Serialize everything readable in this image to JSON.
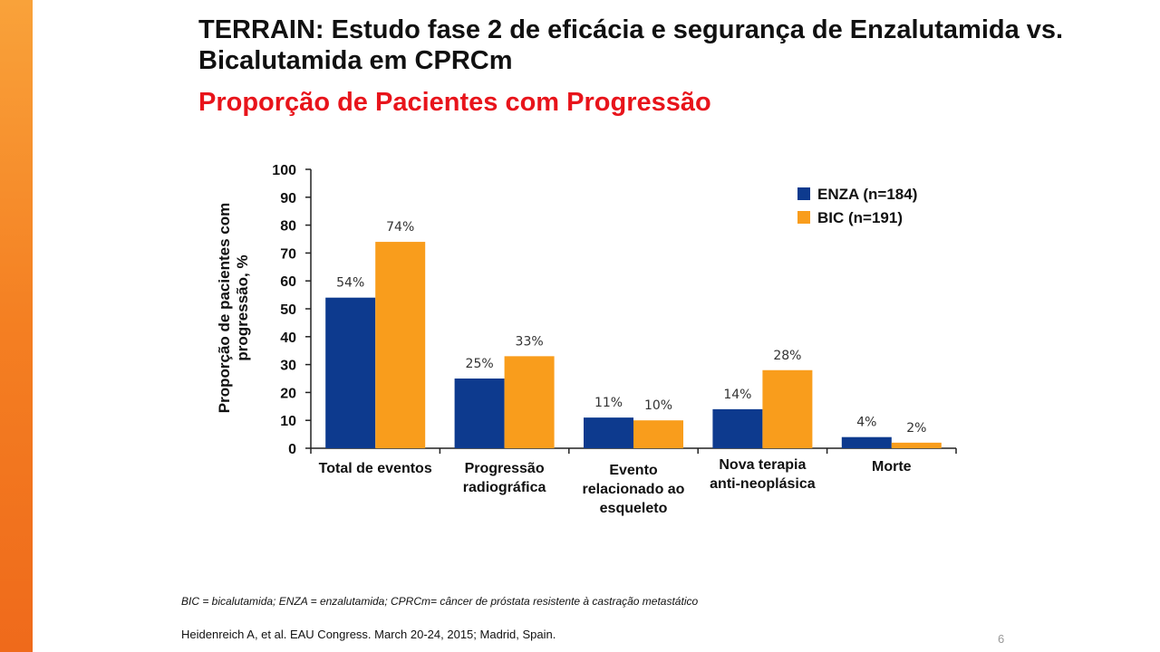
{
  "slide": {
    "title": "TERRAIN: Estudo fase 2 de eficácia e segurança de Enzalutamida vs. Bicalutamida em CPRCm",
    "subtitle": "Proporção de Pacientes com Progressão",
    "footnote": "BIC = bicalutamida; ENZA = enzalutamida; CPRCm= câncer de próstata resistente à castração metastático",
    "reference": "Heidenreich A, et al. EAU Congress. March 20-24, 2015; Madrid, Spain.",
    "page_number": "6",
    "colors": {
      "accent_bar": "#f47f22",
      "title": "#111111",
      "subtitle": "#e8141b"
    }
  },
  "chart_data": {
    "type": "bar",
    "title": "",
    "ylabel": "Proporção de pacientes com progressão, %",
    "xlabel": "",
    "ylim": [
      0,
      100
    ],
    "yticks": [
      0,
      10,
      20,
      30,
      40,
      50,
      60,
      70,
      80,
      90,
      100
    ],
    "categories": [
      "Total de eventos",
      "Progressão radiográfica",
      "Evento relacionado ao esqueleto",
      "Nova terapia anti-neoplásica",
      "Morte"
    ],
    "series": [
      {
        "name": "ENZA (n=184)",
        "color": "#0d3a8e",
        "values": [
          54,
          25,
          11,
          14,
          4
        ],
        "labels": [
          "54%",
          "25%",
          "11%",
          "14%",
          "4%"
        ]
      },
      {
        "name": "BIC (n=191)",
        "color": "#f99d1c",
        "values": [
          74,
          33,
          10,
          28,
          2
        ],
        "labels": [
          "74%",
          "33%",
          "10%",
          "28%",
          "2%"
        ]
      }
    ],
    "legend_position": "top-right",
    "grid": false
  }
}
